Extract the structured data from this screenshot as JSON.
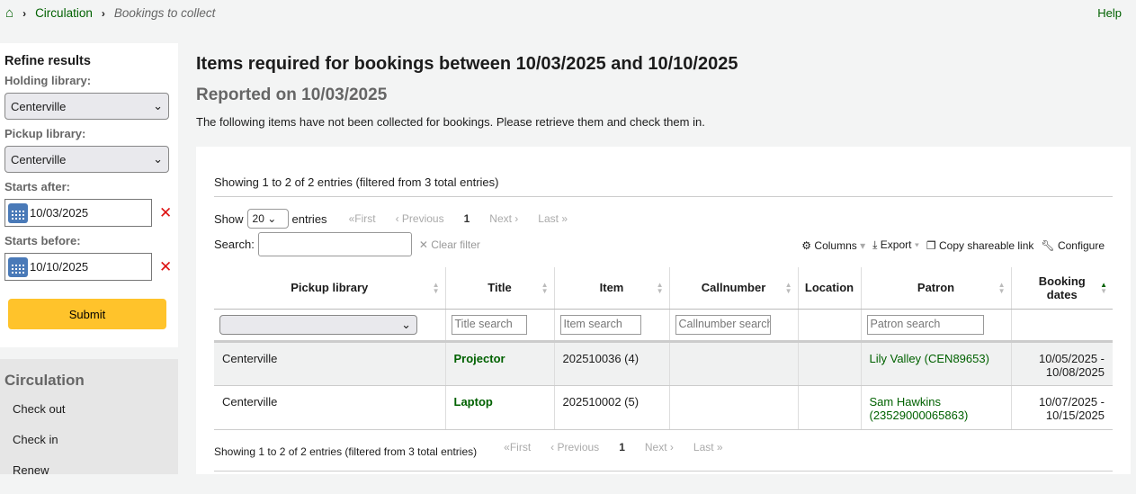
{
  "breadcrumb": {
    "home_icon": "home-icon",
    "items": [
      "Circulation",
      "Bookings to collect"
    ]
  },
  "help": "Help",
  "refine": {
    "title": "Refine results",
    "holding_label": "Holding library:",
    "holding_value": "Centerville",
    "pickup_label": "Pickup library:",
    "pickup_value": "Centerville",
    "after_label": "Starts after:",
    "after_value": "10/03/2025",
    "before_label": "Starts before:",
    "before_value": "10/10/2025",
    "submit": "Submit",
    "accent": "#ffc32b"
  },
  "circ_menu": {
    "title": "Circulation",
    "items": [
      "Check out",
      "Check in",
      "Renew"
    ]
  },
  "main": {
    "title": "Items required for bookings between 10/03/2025 and 10/10/2025",
    "subtitle": "Reported on 10/03/2025",
    "description": "The following items have not been collected for bookings. Please retrieve them and check them in."
  },
  "table": {
    "info": "Showing 1 to 2 of 2 entries (filtered from 3 total entries)",
    "show": "Show",
    "length": "20",
    "entries": "entries",
    "pager": {
      "first": "«First",
      "previous": "‹ Previous",
      "page": "1",
      "next": "Next ›",
      "last": "Last »"
    },
    "search_label": "Search:",
    "clear_filter": "✕ Clear filter",
    "tools": {
      "columns": "Columns",
      "export": "Export",
      "copy": "Copy shareable link",
      "configure": "Configure"
    },
    "headers": [
      "Pickup library",
      "Title",
      "Item",
      "Callnumber",
      "Location",
      "Patron",
      "Booking dates"
    ],
    "filters": {
      "title": "Title search",
      "item": "Item search",
      "callnumber": "Callnumber search",
      "patron": "Patron search"
    },
    "rows": [
      {
        "pickup": "Centerville",
        "title": "Projector",
        "item": "202510036 (4)",
        "callnumber": "",
        "location": "",
        "patron": "Lily Valley (CEN89653)",
        "dates": "10/05/2025 - 10/08/2025"
      },
      {
        "pickup": "Centerville",
        "title": "Laptop",
        "item": "202510002 (5)",
        "callnumber": "",
        "location": "",
        "patron": "Sam Hawkins (23529000065863)",
        "dates": "10/07/2025 - 10/15/2025"
      }
    ]
  }
}
